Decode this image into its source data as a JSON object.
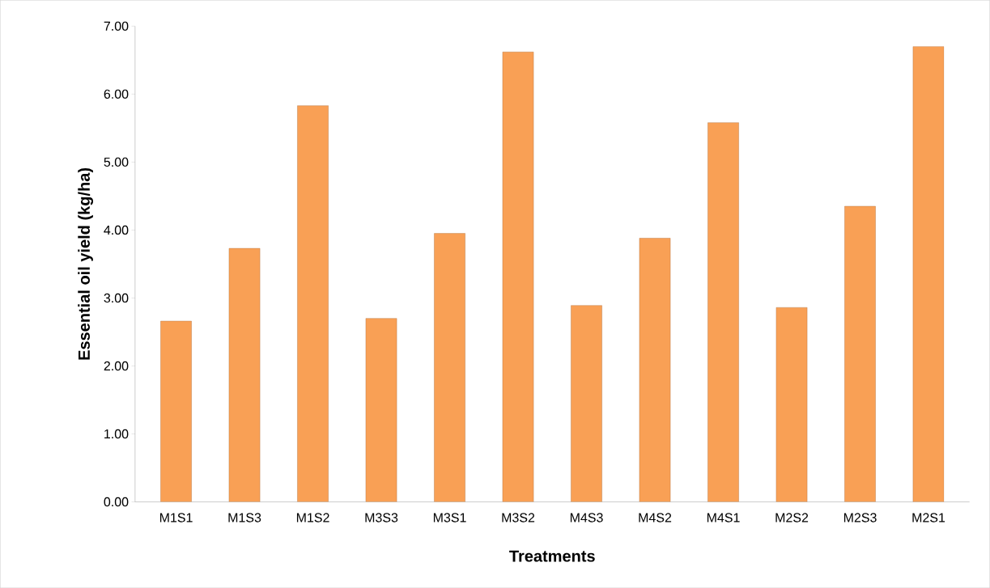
{
  "chart_data": {
    "type": "bar",
    "xlabel": "Treatments",
    "ylabel": "Essential oil yield (kg/ha)",
    "categories": [
      "M1S1",
      "M1S3",
      "M1S2",
      "M3S3",
      "M3S1",
      "M3S2",
      "M4S3",
      "M4S2",
      "M4S1",
      "M2S2",
      "M2S3",
      "M2S1"
    ],
    "values": [
      2.66,
      3.73,
      5.83,
      2.7,
      3.95,
      6.62,
      2.89,
      3.88,
      5.58,
      2.86,
      4.35,
      6.7
    ],
    "color": "#f9a055",
    "ylim": [
      0,
      7
    ],
    "yticks": [
      {
        "value": 0,
        "label": "0.00"
      },
      {
        "value": 1,
        "label": "1.00"
      },
      {
        "value": 2,
        "label": "2.00"
      },
      {
        "value": 3,
        "label": "3.00"
      },
      {
        "value": 4,
        "label": "4.00"
      },
      {
        "value": 5,
        "label": "5.00"
      },
      {
        "value": 6,
        "label": "6.00"
      },
      {
        "value": 7,
        "label": "7.00"
      }
    ],
    "grid": false
  }
}
